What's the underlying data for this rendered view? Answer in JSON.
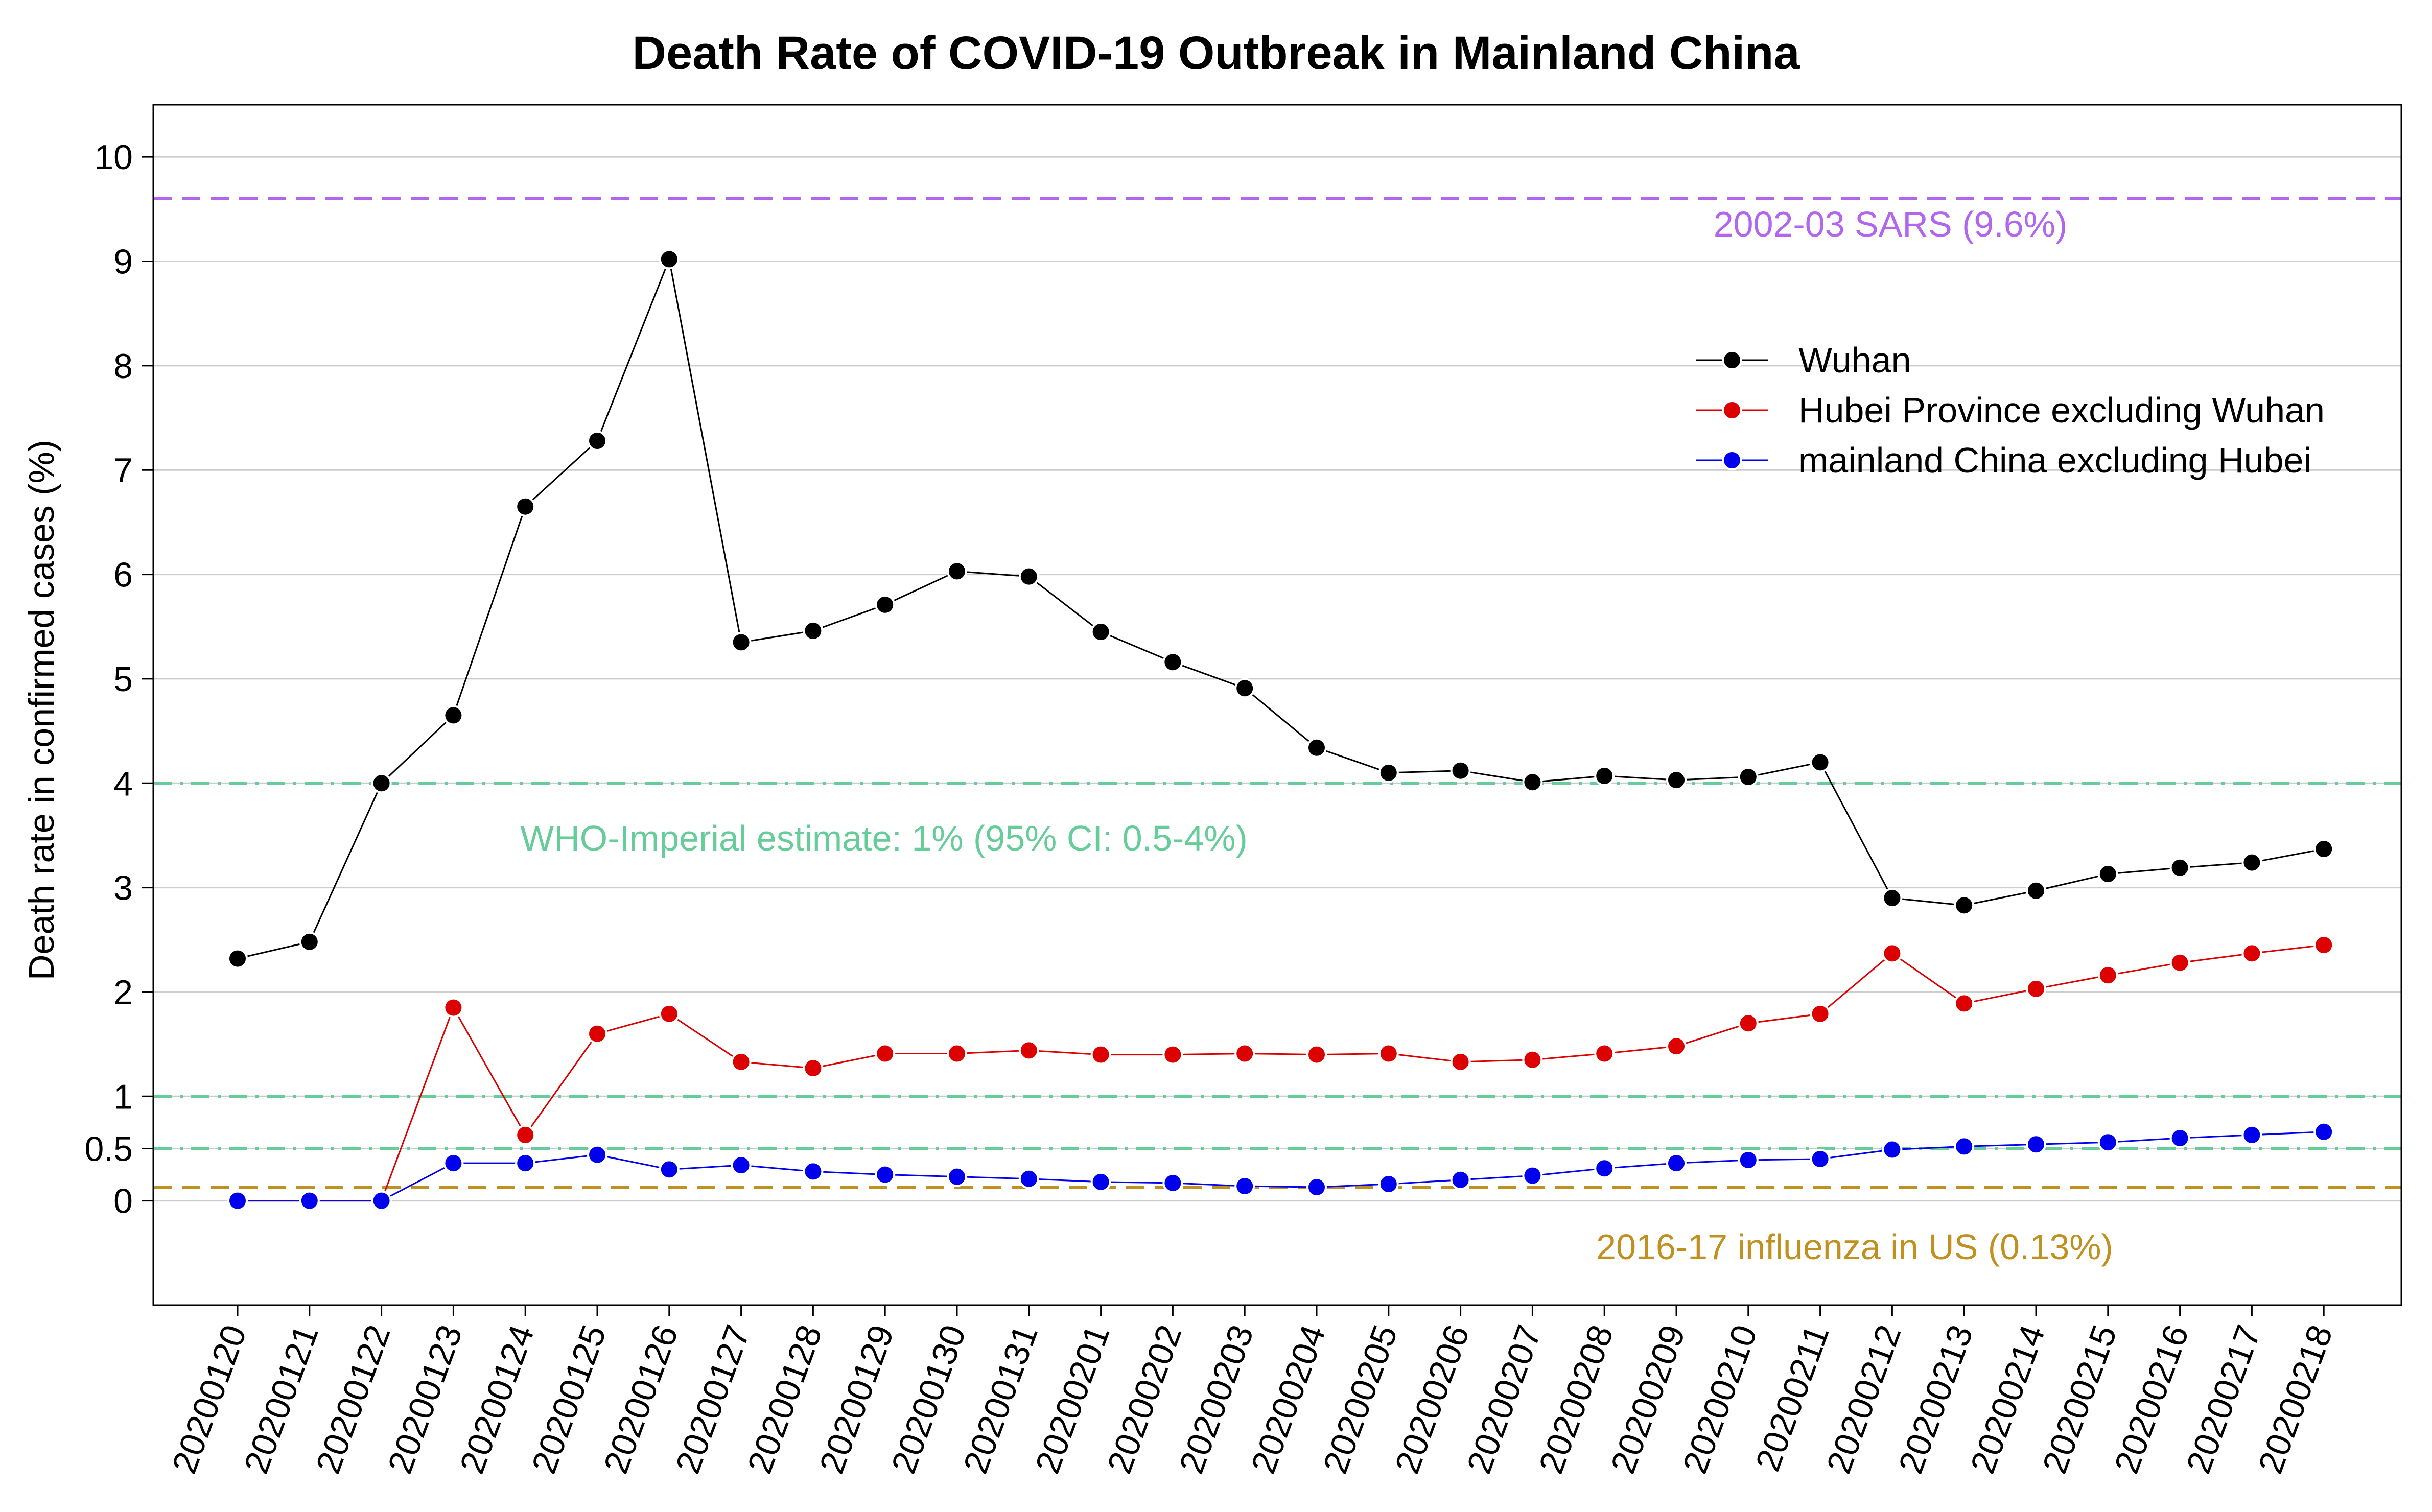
{
  "chart_data": {
    "type": "line",
    "title": "Death Rate of COVID-19 Outbreak in Mainland China",
    "xlabel": "",
    "ylabel": "Death rate in confirmed cases (%)",
    "ylim": [
      -1,
      10.5
    ],
    "yticks": [
      "0",
      "0.5",
      "1",
      "2",
      "3",
      "4",
      "5",
      "6",
      "7",
      "8",
      "9",
      "10"
    ],
    "ytick_values": [
      0,
      0.5,
      1,
      2,
      3,
      4,
      5,
      6,
      7,
      8,
      9,
      10
    ],
    "grid": "horizontal",
    "legend_position": "top-right",
    "categories": [
      "20200120",
      "20200121",
      "20200122",
      "20200123",
      "20200124",
      "20200125",
      "20200126",
      "20200127",
      "20200128",
      "20200129",
      "20200130",
      "20200131",
      "20200201",
      "20200202",
      "20200203",
      "20200204",
      "20200205",
      "20200206",
      "20200207",
      "20200208",
      "20200209",
      "20200210",
      "20200211",
      "20200212",
      "20200213",
      "20200214",
      "20200215",
      "20200216",
      "20200217",
      "20200218"
    ],
    "series": [
      {
        "name": "Wuhan",
        "color": "#000000",
        "values": [
          2.32,
          2.48,
          4.0,
          4.65,
          6.65,
          7.28,
          9.02,
          5.35,
          5.46,
          5.71,
          6.03,
          5.98,
          5.45,
          5.16,
          4.91,
          4.34,
          4.1,
          4.12,
          4.01,
          4.07,
          4.03,
          4.06,
          4.2,
          2.9,
          2.83,
          2.97,
          3.13,
          3.19,
          3.24,
          3.37
        ]
      },
      {
        "name": "Hubei Province excluding Wuhan",
        "color": "#dd0000",
        "values": [
          0,
          0,
          0,
          1.85,
          0.63,
          1.6,
          1.79,
          1.33,
          1.27,
          1.41,
          1.41,
          1.44,
          1.4,
          1.4,
          1.41,
          1.4,
          1.41,
          1.33,
          1.35,
          1.41,
          1.48,
          1.7,
          1.79,
          2.37,
          1.89,
          2.03,
          2.16,
          2.28,
          2.37,
          2.45
        ]
      },
      {
        "name": "mainland China excluding Hubei",
        "color": "#0000ee",
        "values": [
          0,
          0,
          0,
          0.36,
          0.36,
          0.44,
          0.3,
          0.34,
          0.28,
          0.25,
          0.23,
          0.21,
          0.18,
          0.17,
          0.14,
          0.13,
          0.16,
          0.2,
          0.24,
          0.31,
          0.36,
          0.39,
          0.4,
          0.49,
          0.52,
          0.54,
          0.56,
          0.6,
          0.63,
          0.66
        ]
      }
    ],
    "reference_lines": [
      {
        "value": 9.6,
        "label": "2002-03 SARS (9.6%)",
        "color": "#b266ee",
        "style": "dashed"
      },
      {
        "value": 4,
        "label": "WHO-Imperial estimate: 1% (95% CI: 0.5-4%)",
        "color": "#66cc99",
        "style": "dashdot"
      },
      {
        "value": 1,
        "label": "",
        "color": "#66cc99",
        "style": "dashdot"
      },
      {
        "value": 0.5,
        "label": "",
        "color": "#66cc99",
        "style": "dashdot"
      },
      {
        "value": 0.13,
        "label": "2016-17 influenza in US (0.13%)",
        "color": "#c09020",
        "style": "dashed"
      }
    ]
  }
}
